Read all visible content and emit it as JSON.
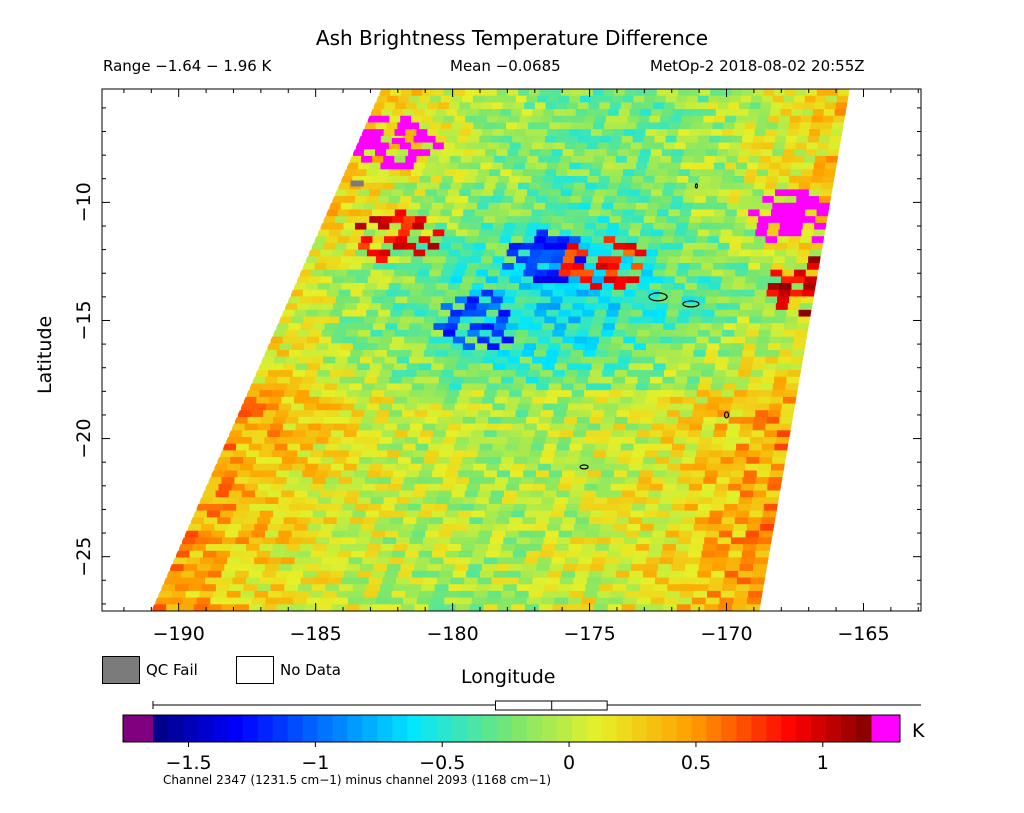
{
  "header": {
    "title": "Ash Brightness Temperature Difference",
    "range_text": "Range −1.64 − 1.96 K",
    "mean_text": "Mean −0.0685",
    "meta_text": "MetOp-2 2018-08-02 20:55Z"
  },
  "legend": {
    "qc_fail_label": "QC Fail",
    "qc_fail_color": "#7b7b7b",
    "no_data_label": "No Data",
    "no_data_color": "#ffffff"
  },
  "colorbar": {
    "unit": "K",
    "min": -1.64,
    "max": 1.19,
    "ticks": [
      {
        "value": -1.5,
        "label": "−1.5"
      },
      {
        "value": -1,
        "label": "−1"
      },
      {
        "value": -0.5,
        "label": "−0.5"
      },
      {
        "value": 0,
        "label": "0"
      },
      {
        "value": 0.5,
        "label": "0.5"
      },
      {
        "value": 1,
        "label": "1"
      }
    ],
    "under_color": "#800080",
    "over_color": "#ff00ff",
    "footnote": "Channel 2347 (1231.5 cm−1) minus channel 2093 (1168 cm−1)"
  },
  "chart_data": {
    "type": "heatmap",
    "title": "Ash Brightness Temperature Difference",
    "xlabel": "Longitude",
    "ylabel": "Latitude",
    "xlim": [
      -192.8,
      -162.9
    ],
    "ylim": [
      -27.3,
      -5.2
    ],
    "x_ticks": [
      {
        "value": -190,
        "label": "−190"
      },
      {
        "value": -185,
        "label": "−185"
      },
      {
        "value": -180,
        "label": "−180"
      },
      {
        "value": -175,
        "label": "−175"
      },
      {
        "value": -170,
        "label": "−170"
      },
      {
        "value": -165,
        "label": "−165"
      }
    ],
    "y_ticks": [
      {
        "value": -10,
        "label": "−10"
      },
      {
        "value": -15,
        "label": "−15"
      },
      {
        "value": -20,
        "label": "−20"
      },
      {
        "value": -25,
        "label": "−25"
      }
    ],
    "range_K": [
      -1.64,
      1.96
    ],
    "mean_K": -0.0685,
    "swath_lon_left": [
      {
        "lat": -5.2,
        "lon": -182.6
      },
      {
        "lat": -27.3,
        "lon": -191.0
      }
    ],
    "swath_lon_right": [
      {
        "lat": -5.2,
        "lon": -165.5
      },
      {
        "lat": -27.3,
        "lon": -168.8
      }
    ],
    "features": [
      {
        "lon": -176.5,
        "lat": -12.3,
        "value": -1.2,
        "kind": "negative cluster"
      },
      {
        "lon": -179.0,
        "lat": -15.0,
        "value": -1.1,
        "kind": "negative cluster"
      },
      {
        "lon": -182.0,
        "lat": -11.5,
        "value": 0.9,
        "kind": "positive cluster"
      },
      {
        "lon": -174.5,
        "lat": -12.5,
        "value": 0.8,
        "kind": "positive cluster"
      },
      {
        "lon": -167.0,
        "lat": -13.5,
        "value": 1.0,
        "kind": "positive cluster"
      },
      {
        "lon": -190.0,
        "lat": -21.0,
        "value": 0.8,
        "kind": "positive cluster"
      },
      {
        "lon": -182.0,
        "lat": -7.4,
        "value": 1.5,
        "kind": "above range"
      },
      {
        "lon": -167.5,
        "lat": -10.6,
        "value": 1.5,
        "kind": "above range"
      },
      {
        "lon": -183.5,
        "lat": -9.2,
        "value": null,
        "kind": "QC fail"
      }
    ]
  }
}
